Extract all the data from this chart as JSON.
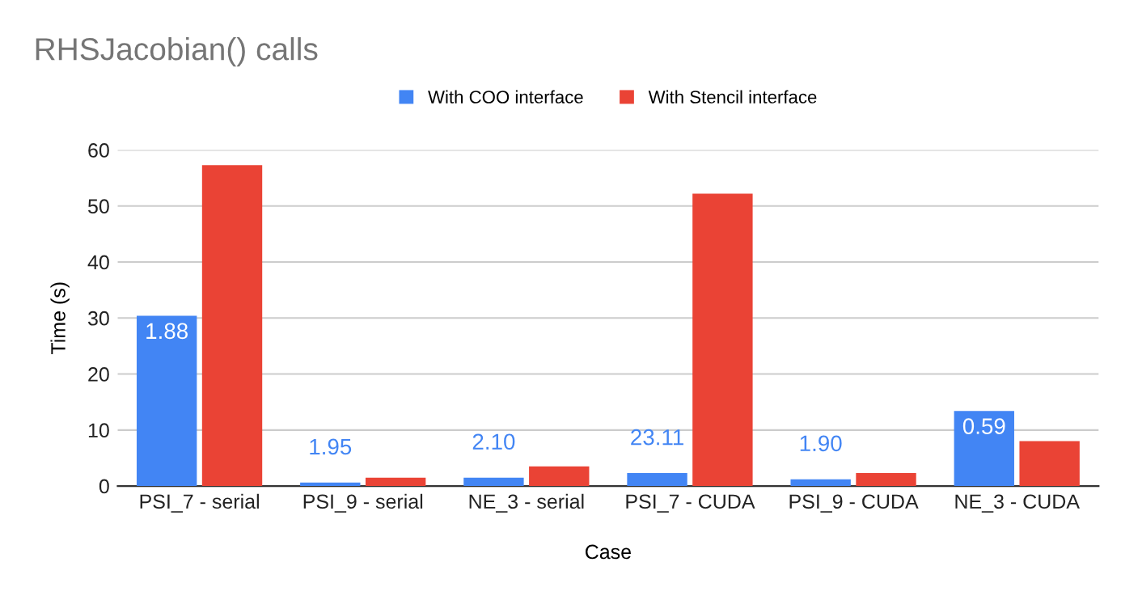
{
  "chart_data": {
    "type": "bar",
    "title": "RHSJacobian() calls",
    "xlabel": "Case",
    "ylabel": "Time (s)",
    "categories": [
      "PSI_7 - serial",
      "PSI_9 - serial",
      "NE_3 - serial",
      "PSI_7 - CUDA",
      "PSI_9 - CUDA",
      "NE_3 - CUDA"
    ],
    "series": [
      {
        "name": "With COO interface",
        "color": "#4285f4",
        "values": [
          30.4,
          0.6,
          1.5,
          2.3,
          1.2,
          13.4
        ]
      },
      {
        "name": "With Stencil interface",
        "color": "#ea4335",
        "values": [
          57.3,
          1.5,
          3.5,
          52.2,
          2.3,
          8.0
        ]
      }
    ],
    "annotations": [
      {
        "text": "1.88",
        "x": "PSI_7 - serial",
        "y": 30.4
      },
      {
        "text": "1.95",
        "x": "PSI_9 - serial",
        "y": 0.6
      },
      {
        "text": "2.10",
        "x": "NE_3 - serial",
        "y": 1.5
      },
      {
        "text": "23.11",
        "x": "PSI_7 - CUDA",
        "y": 2.3
      },
      {
        "text": "1.90",
        "x": "PSI_9 - CUDA",
        "y": 1.2
      },
      {
        "text": "0.59",
        "x": "NE_3 - CUDA",
        "y": 13.4
      }
    ],
    "ylim": [
      0,
      60
    ],
    "yticks": [
      0,
      10,
      20,
      30,
      40,
      50,
      60
    ],
    "grid": "y",
    "legend": "top"
  }
}
